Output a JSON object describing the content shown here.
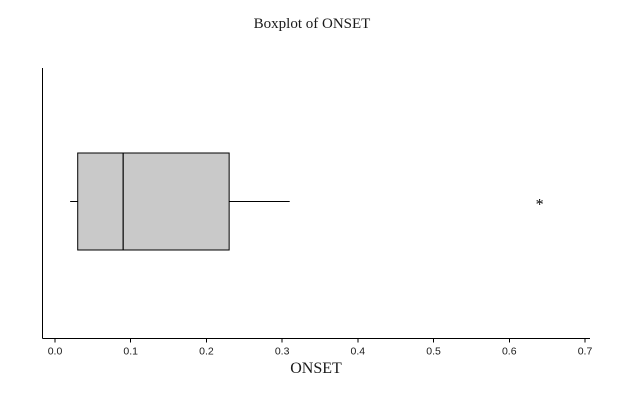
{
  "chart_data": {
    "type": "boxplot",
    "orientation": "horizontal",
    "title": "Boxplot of ONSET",
    "xlabel": "ONSET",
    "xlim": [
      0.0,
      0.7
    ],
    "xticks": [
      0.0,
      0.1,
      0.2,
      0.3,
      0.4,
      0.5,
      0.6,
      0.7
    ],
    "tick_decimals": 1,
    "box": {
      "whisker_low": 0.02,
      "q1": 0.03,
      "median": 0.09,
      "q3": 0.23,
      "whisker_high": 0.31
    },
    "outliers": [
      0.64
    ],
    "outlier_marker": "*",
    "box_fill": "#c9c9c9",
    "stroke_color": "#000000",
    "grid": false,
    "legend": false
  }
}
